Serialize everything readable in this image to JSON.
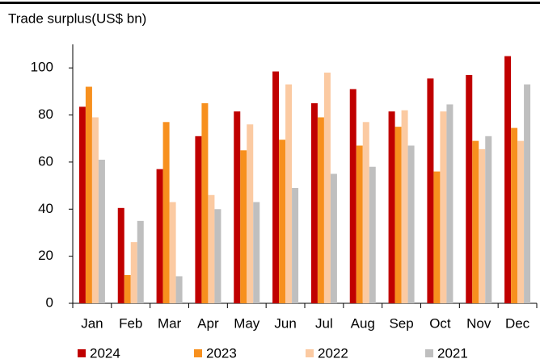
{
  "chart_data": {
    "type": "bar",
    "title": "Trade surplus(US$ bn)",
    "categories": [
      "Jan",
      "Feb",
      "Mar",
      "Apr",
      "May",
      "Jun",
      "Jul",
      "Aug",
      "Sep",
      "Oct",
      "Nov",
      "Dec"
    ],
    "series": [
      {
        "name": "2024",
        "color": "#c00000",
        "values": [
          83.5,
          40.5,
          57,
          71,
          81.5,
          98.5,
          85,
          91,
          81.5,
          95.5,
          97,
          105
        ]
      },
      {
        "name": "2023",
        "color": "#f7901e",
        "values": [
          92,
          12,
          77,
          85,
          65,
          69.5,
          79,
          67,
          75,
          56,
          69,
          74.5
        ]
      },
      {
        "name": "2022",
        "color": "#fbcaa2",
        "values": [
          79,
          26,
          43,
          46,
          76,
          93,
          98,
          77,
          82,
          81.5,
          65.5,
          69
        ]
      },
      {
        "name": "2021",
        "color": "#bfbfbf",
        "values": [
          61,
          35,
          11.5,
          40,
          43,
          49,
          55,
          58,
          67,
          84.5,
          71,
          93
        ]
      }
    ],
    "ylim": [
      0,
      110
    ],
    "yticks": [
      0,
      20,
      40,
      60,
      80,
      100
    ],
    "grid": false,
    "legend_position": "bottom"
  }
}
